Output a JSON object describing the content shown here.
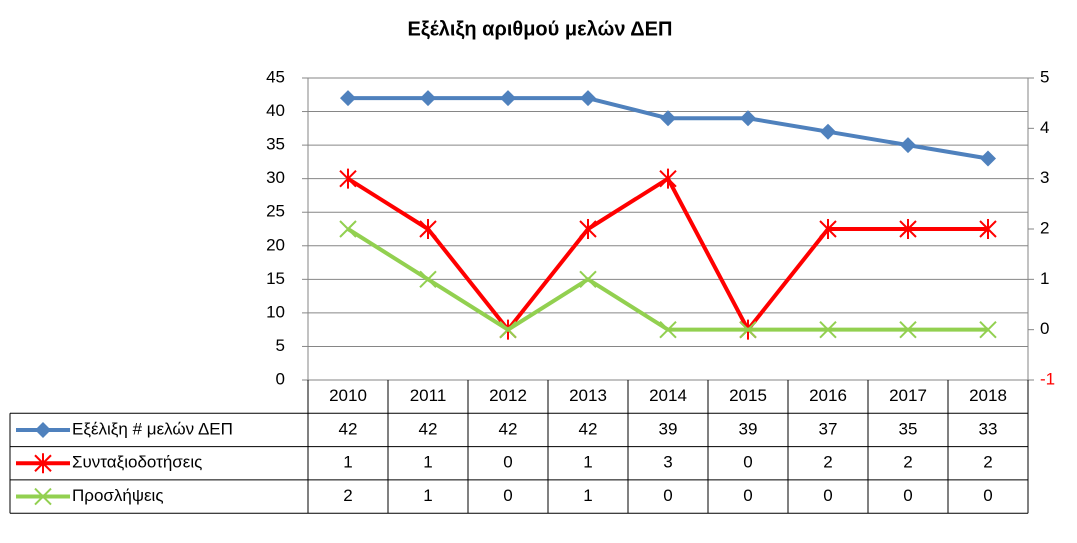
{
  "chart_data": {
    "type": "line",
    "title": "Εξέλιξη αριθμού μελών ΔΕΠ",
    "categories": [
      "2010",
      "2011",
      "2012",
      "2013",
      "2014",
      "2015",
      "2016",
      "2017",
      "2018"
    ],
    "series": [
      {
        "name": "Εξέλιξη # μελών ΔΕΠ",
        "color": "#4f81bd",
        "marker": "diamond",
        "values": [
          42,
          42,
          42,
          42,
          39,
          39,
          37,
          35,
          33
        ]
      },
      {
        "name": "Συνταξιοδοτήσεις",
        "color": "#ff0000",
        "marker": "star",
        "axis": "y2",
        "values": [
          1,
          1,
          0,
          1,
          3,
          0,
          2,
          2,
          2
        ]
      },
      {
        "name": "Προσλήψεις",
        "color": "#92d050",
        "marker": "x",
        "axis": "y2",
        "values": [
          2,
          1,
          0,
          1,
          0,
          0,
          0,
          0,
          0
        ]
      }
    ],
    "ylim": [
      0,
      45
    ],
    "yticks": [
      0,
      5,
      10,
      15,
      20,
      25,
      30,
      35,
      40,
      45
    ],
    "y2lim": [
      -1,
      5
    ],
    "y2ticks": [
      -1,
      0,
      1,
      2,
      3,
      4,
      5
    ],
    "y2_negative_tick_color": "#ff0000",
    "y2_stacked": true,
    "grid": true,
    "data_table": true
  }
}
